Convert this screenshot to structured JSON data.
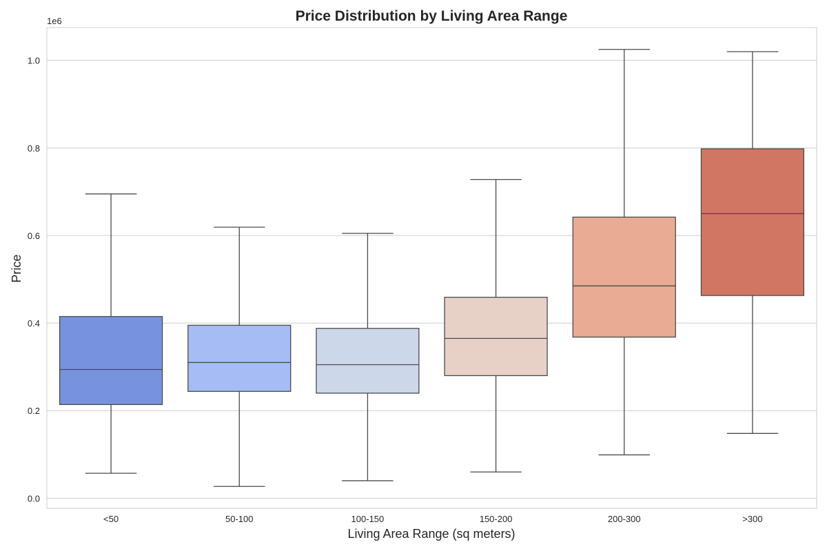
{
  "chart_data": {
    "type": "box",
    "title": "Price Distribution by Living Area Range",
    "xlabel": "Living Area Range (sq meters)",
    "ylabel": "Price",
    "y_offset_label": "1e6",
    "ylim": [
      -0.023,
      1.075
    ],
    "yticks": [
      0.0,
      0.2,
      0.4,
      0.6,
      0.8,
      1.0
    ],
    "ytick_labels": [
      "0.0",
      "0.2",
      "0.4",
      "0.6",
      "0.8",
      "1.0"
    ],
    "grid": true,
    "categories": [
      "<50",
      "50-100",
      "100-150",
      "150-200",
      "200-300",
      ">300"
    ],
    "boxes": [
      {
        "category": "<50",
        "whisker_low": 0.057,
        "q1": 0.214,
        "median": 0.294,
        "q3": 0.415,
        "whisker_high": 0.695,
        "color": "#7793e0"
      },
      {
        "category": "50-100",
        "whisker_low": 0.027,
        "q1": 0.244,
        "median": 0.31,
        "q3": 0.395,
        "whisker_high": 0.619,
        "color": "#a5bdf4"
      },
      {
        "category": "100-150",
        "whisker_low": 0.04,
        "q1": 0.24,
        "median": 0.305,
        "q3": 0.388,
        "whisker_high": 0.605,
        "color": "#ccd7ea"
      },
      {
        "category": "150-200",
        "whisker_low": 0.06,
        "q1": 0.28,
        "median": 0.365,
        "q3": 0.459,
        "whisker_high": 0.728,
        "color": "#e7d1c7"
      },
      {
        "category": "200-300",
        "whisker_low": 0.099,
        "q1": 0.368,
        "median": 0.485,
        "q3": 0.642,
        "whisker_high": 1.025,
        "color": "#e9ab93"
      },
      {
        "category": ">300",
        "whisker_low": 0.148,
        "q1": 0.463,
        "median": 0.65,
        "q3": 0.798,
        "whisker_high": 1.02,
        "color": "#d17663"
      }
    ]
  }
}
